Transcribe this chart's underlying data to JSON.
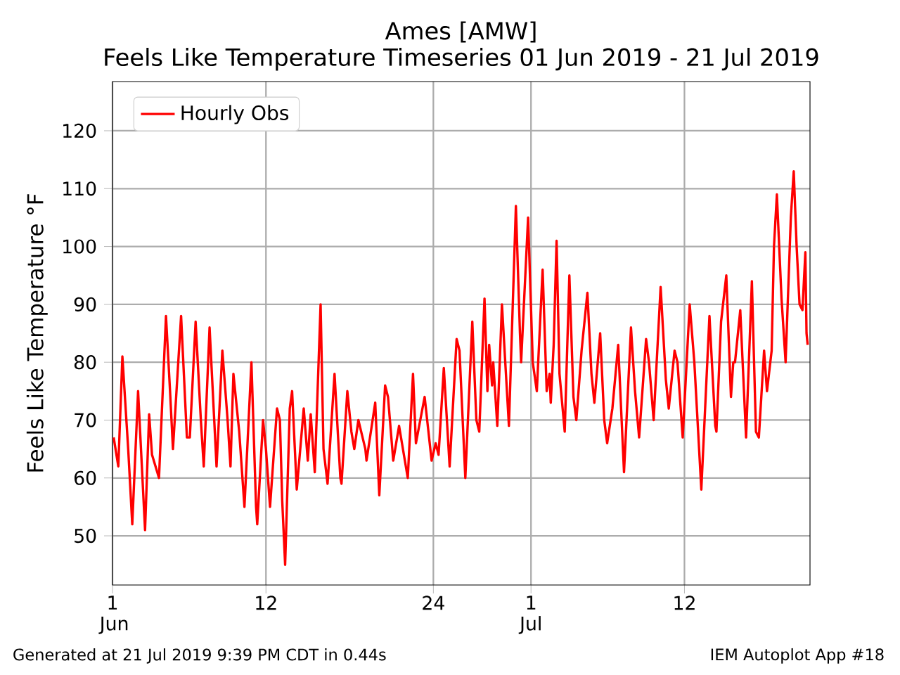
{
  "chart_data": {
    "type": "line",
    "title": "Ames [AMW]",
    "subtitle": "Feels Like Temperature Timeseries 01 Jun 2019 - 21 Jul 2019",
    "ylabel": "Feels Like Temperature °F",
    "annotations": [
      "Generated at 21 Jul 2019 9:39 PM CDT in 0.44s",
      "IEM Autoplot App #18"
    ],
    "xlim": [
      "2019-06-01",
      "2019-07-21"
    ],
    "ylim": [
      41.5,
      128.5
    ],
    "xticks": [
      {
        "value": "2019-06-01",
        "label": "1 Jun"
      },
      {
        "value": "2019-06-12",
        "label": "12"
      },
      {
        "value": "2019-06-24",
        "label": "24"
      },
      {
        "value": "2019-07-01",
        "label": "1 Jul"
      },
      {
        "value": "2019-07-12",
        "label": "12"
      }
    ],
    "yticks": [
      50,
      60,
      70,
      80,
      90,
      100,
      110,
      120
    ],
    "grid": true,
    "legend": "top left",
    "series": [
      {
        "name": "Hourly Obs",
        "color": "#ff0000",
        "x": [
          "2019-06-01T02:00",
          "2019-06-01T10:00",
          "2019-06-01T17:00",
          "2019-06-02T03:00",
          "2019-06-02T10:00",
          "2019-06-02T20:00",
          "2019-06-03T08:00",
          "2019-06-03T15:00",
          "2019-06-03T20:00",
          "2019-06-04T08:00",
          "2019-06-04T20:00",
          "2019-06-05T03:00",
          "2019-06-05T08:00",
          "2019-06-05T22:00",
          "2019-06-06T08:00",
          "2019-06-06T13:00",
          "2019-06-06T23:00",
          "2019-06-07T08:00",
          "2019-06-07T13:00",
          "2019-06-07T23:00",
          "2019-06-08T08:00",
          "2019-06-08T11:00",
          "2019-06-08T21:00",
          "2019-06-09T06:00",
          "2019-06-09T11:00",
          "2019-06-09T16:00",
          "2019-06-10T02:00",
          "2019-06-10T11:00",
          "2019-06-10T23:00",
          "2019-06-11T07:00",
          "2019-06-11T09:00",
          "2019-06-11T19:00",
          "2019-06-12T00:00",
          "2019-06-12T07:00",
          "2019-06-12T19:00",
          "2019-06-13T00:00",
          "2019-06-13T04:00",
          "2019-06-13T09:00",
          "2019-06-13T17:00",
          "2019-06-13T21:00",
          "2019-06-14T05:00",
          "2019-06-14T17:00",
          "2019-06-15T00:00",
          "2019-06-15T05:00",
          "2019-06-15T12:00",
          "2019-06-15T22:00",
          "2019-06-16T03:00",
          "2019-06-16T10:00",
          "2019-06-16T22:00",
          "2019-06-17T08:00",
          "2019-06-17T10:00",
          "2019-06-17T20:00",
          "2019-06-18T03:00",
          "2019-06-18T08:00",
          "2019-06-18T15:00",
          "2019-06-19T03:00",
          "2019-06-19T05:00",
          "2019-06-19T20:00",
          "2019-06-20T03:00",
          "2019-06-20T13:00",
          "2019-06-20T18:00",
          "2019-06-21T03:00",
          "2019-06-21T13:00",
          "2019-06-22T04:00",
          "2019-06-22T13:00",
          "2019-06-22T18:00",
          "2019-06-23T09:00",
          "2019-06-23T21:00",
          "2019-06-24T04:00",
          "2019-06-24T09:00",
          "2019-06-24T18:00",
          "2019-06-25T04:00",
          "2019-06-25T16:00",
          "2019-06-25T21:00",
          "2019-06-26T07:00",
          "2019-06-26T19:00",
          "2019-06-27T02:00",
          "2019-06-27T07:00",
          "2019-06-27T16:00",
          "2019-06-27T21:00",
          "2019-06-28T00:00",
          "2019-06-28T05:00",
          "2019-06-28T07:00",
          "2019-06-28T14:00",
          "2019-06-28T22:00",
          "2019-06-29T10:00",
          "2019-06-29T22:00",
          "2019-06-30T05:00",
          "2019-06-30T07:00",
          "2019-06-30T19:00",
          "2019-07-01T03:00",
          "2019-07-01T10:00",
          "2019-07-01T20:00",
          "2019-07-02T03:00",
          "2019-07-02T08:00",
          "2019-07-02T10:00",
          "2019-07-02T15:00",
          "2019-07-02T20:00",
          "2019-07-03T01:00",
          "2019-07-03T10:00",
          "2019-07-03T18:00",
          "2019-07-04T01:00",
          "2019-07-04T06:00",
          "2019-07-04T15:00",
          "2019-07-05T01:00",
          "2019-07-05T08:00",
          "2019-07-05T13:00",
          "2019-07-05T23:00",
          "2019-07-06T06:00",
          "2019-07-06T11:00",
          "2019-07-06T20:00",
          "2019-07-07T06:00",
          "2019-07-07T16:00",
          "2019-07-08T04:00",
          "2019-07-08T11:00",
          "2019-07-08T18:00",
          "2019-07-09T06:00",
          "2019-07-09T11:00",
          "2019-07-09T19:00",
          "2019-07-10T07:00",
          "2019-07-10T16:00",
          "2019-07-10T21:00",
          "2019-07-11T07:00",
          "2019-07-11T12:00",
          "2019-07-11T21:00",
          "2019-07-12T09:00",
          "2019-07-12T17:00",
          "2019-07-13T05:00",
          "2019-07-13T19:00",
          "2019-07-14T05:00",
          "2019-07-14T07:00",
          "2019-07-14T15:00",
          "2019-07-15T00:00",
          "2019-07-15T08:00",
          "2019-07-15T12:00",
          "2019-07-15T15:00",
          "2019-07-16T00:00",
          "2019-07-16T10:00",
          "2019-07-16T20:00",
          "2019-07-17T03:00",
          "2019-07-17T08:00",
          "2019-07-17T17:00",
          "2019-07-17T22:00",
          "2019-07-18T06:00",
          "2019-07-18T10:00",
          "2019-07-18T15:00",
          "2019-07-18T23:00",
          "2019-07-19T06:00",
          "2019-07-19T15:00",
          "2019-07-19T20:00",
          "2019-07-20T01:00",
          "2019-07-20T06:00",
          "2019-07-20T11:00",
          "2019-07-20T16:00",
          "2019-07-20T18:00",
          "2019-07-20T20:00"
        ],
        "values": [
          67,
          62,
          81,
          65,
          52,
          75,
          51,
          71,
          64,
          60,
          88,
          75,
          65,
          88,
          67,
          67,
          87,
          70,
          62,
          86,
          68,
          62,
          82,
          70,
          62,
          78,
          68,
          55,
          80,
          55,
          52,
          70,
          65,
          55,
          72,
          70,
          56,
          45,
          72,
          75,
          58,
          72,
          63,
          71,
          61,
          90,
          65,
          59,
          78,
          60,
          59,
          75,
          68,
          65,
          70,
          65,
          63,
          73,
          57,
          76,
          74,
          63,
          69,
          60,
          78,
          66,
          74,
          63,
          66,
          64,
          79,
          62,
          84,
          82,
          60,
          87,
          70,
          68,
          91,
          75,
          83,
          76,
          80,
          69,
          90,
          69,
          107,
          85,
          80,
          105,
          80,
          75,
          96,
          75,
          78,
          73,
          83,
          101,
          78,
          68,
          95,
          74,
          70,
          82,
          92,
          78,
          73,
          85,
          70,
          66,
          72,
          83,
          61,
          86,
          75,
          67,
          84,
          80,
          70,
          93,
          77,
          72,
          82,
          80,
          67,
          90,
          80,
          58,
          88,
          69,
          68,
          87,
          95,
          74,
          80,
          80,
          89,
          67,
          94,
          68,
          67,
          82,
          75,
          82,
          100,
          109,
          91,
          80,
          105,
          113,
          100,
          90,
          89,
          99,
          85,
          83
        ]
      }
    ]
  }
}
